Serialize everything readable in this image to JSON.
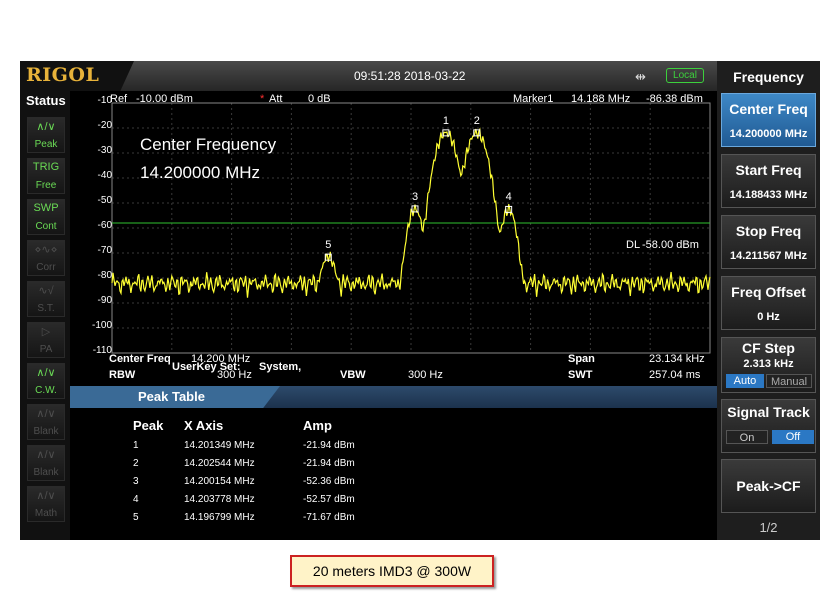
{
  "header": {
    "logo": "RIGOL",
    "datetime": "09:51:28 2018-03-22",
    "usb_icon": "usb-icon",
    "local": "Local"
  },
  "status": {
    "title": "Status",
    "items": [
      {
        "icon": "peak-icon",
        "glyph": "∧/∨",
        "label": "Peak",
        "active": true
      },
      {
        "icon": "trigger-icon",
        "glyph": "TRIG",
        "label": "Free",
        "active": true
      },
      {
        "icon": "sweep-icon",
        "glyph": "SWP",
        "label": "Cont",
        "active": true
      },
      {
        "icon": "corr-icon",
        "glyph": "⋄∿⋄",
        "label": "Corr",
        "active": false
      },
      {
        "icon": "st-icon",
        "glyph": "∿√",
        "label": "S.T.",
        "active": false
      },
      {
        "icon": "pa-icon",
        "glyph": "▷",
        "label": "PA",
        "active": false
      },
      {
        "icon": "cw-icon",
        "glyph": "∧/∨",
        "label": "C.W.",
        "active": true
      },
      {
        "icon": "blank-icon",
        "glyph": "∧/∨",
        "label": "Blank",
        "active": false
      },
      {
        "icon": "blank-icon",
        "glyph": "∧/∨",
        "label": "Blank",
        "active": false
      },
      {
        "icon": "math-icon",
        "glyph": "∧/∨",
        "label": "Math",
        "active": false
      }
    ]
  },
  "plot": {
    "ref_label": "Ref",
    "ref_value": "-10.00 dBm",
    "att_label": "Att",
    "att_value": "0 dB",
    "marker_label": "Marker1",
    "marker_freq": "14.188 MHz",
    "marker_amp": "-86.38 dBm",
    "center_freq_title": "Center Frequency",
    "center_freq_value": "14.200000 MHz",
    "dl_label": "DL",
    "dl_value": "-58.00 dBm",
    "userkey_label": "UserKey Set:",
    "userkey_value": "System,",
    "y_ticks": [
      "-10",
      "-20",
      "-30",
      "-40",
      "-50",
      "-60",
      "-70",
      "-80",
      "-90",
      "-100",
      "-110"
    ],
    "bottom": {
      "center_label": "Center Freq",
      "center_value": "14.200 MHz",
      "span_label": "Span",
      "span_value": "23.134 kHz",
      "rbw_label": "RBW",
      "rbw_value": "300 Hz",
      "vbw_label": "VBW",
      "vbw_value": "300 Hz",
      "swt_label": "SWT",
      "swt_value": "257.04 ms"
    }
  },
  "chart_data": {
    "type": "line",
    "ylim": [
      -110,
      -10
    ],
    "xlim": [
      14.188433,
      14.211567
    ],
    "display_line": -58.0,
    "trace_color": "#ffff33",
    "markers": [
      {
        "label": "1",
        "x": 14.201349,
        "y": -21.94
      },
      {
        "label": "2",
        "x": 14.202544,
        "y": -21.94
      },
      {
        "label": "3",
        "x": 14.200154,
        "y": -52.36
      },
      {
        "label": "4",
        "x": 14.203778,
        "y": -52.57
      },
      {
        "label": "5",
        "x": 14.196799,
        "y": -71.67
      }
    ]
  },
  "peak_table": {
    "title": "Peak Table",
    "headers": [
      "Peak",
      "X Axis",
      "Amp"
    ],
    "rows": [
      [
        "1",
        "14.201349 MHz",
        "-21.94 dBm"
      ],
      [
        "2",
        "14.202544 MHz",
        "-21.94 dBm"
      ],
      [
        "3",
        "14.200154 MHz",
        "-52.36 dBm"
      ],
      [
        "4",
        "14.203778 MHz",
        "-52.57 dBm"
      ],
      [
        "5",
        "14.196799 MHz",
        "-71.67 dBm"
      ]
    ]
  },
  "menu": {
    "title": "Frequency",
    "center_freq": {
      "label": "Center Freq",
      "value": "14.200000 MHz"
    },
    "start_freq": {
      "label": "Start Freq",
      "value": "14.188433 MHz"
    },
    "stop_freq": {
      "label": "Stop Freq",
      "value": "14.211567 MHz"
    },
    "freq_offset": {
      "label": "Freq Offset",
      "value": "0 Hz"
    },
    "cf_step": {
      "label": "CF Step",
      "value": "2.313 kHz",
      "auto": "Auto",
      "manual": "Manual"
    },
    "signal_track": {
      "label": "Signal Track",
      "on": "On",
      "off": "Off"
    },
    "peak_cf": {
      "label": "Peak->CF"
    },
    "page": "1/2"
  },
  "caption": "20 meters IMD3 @ 300W"
}
